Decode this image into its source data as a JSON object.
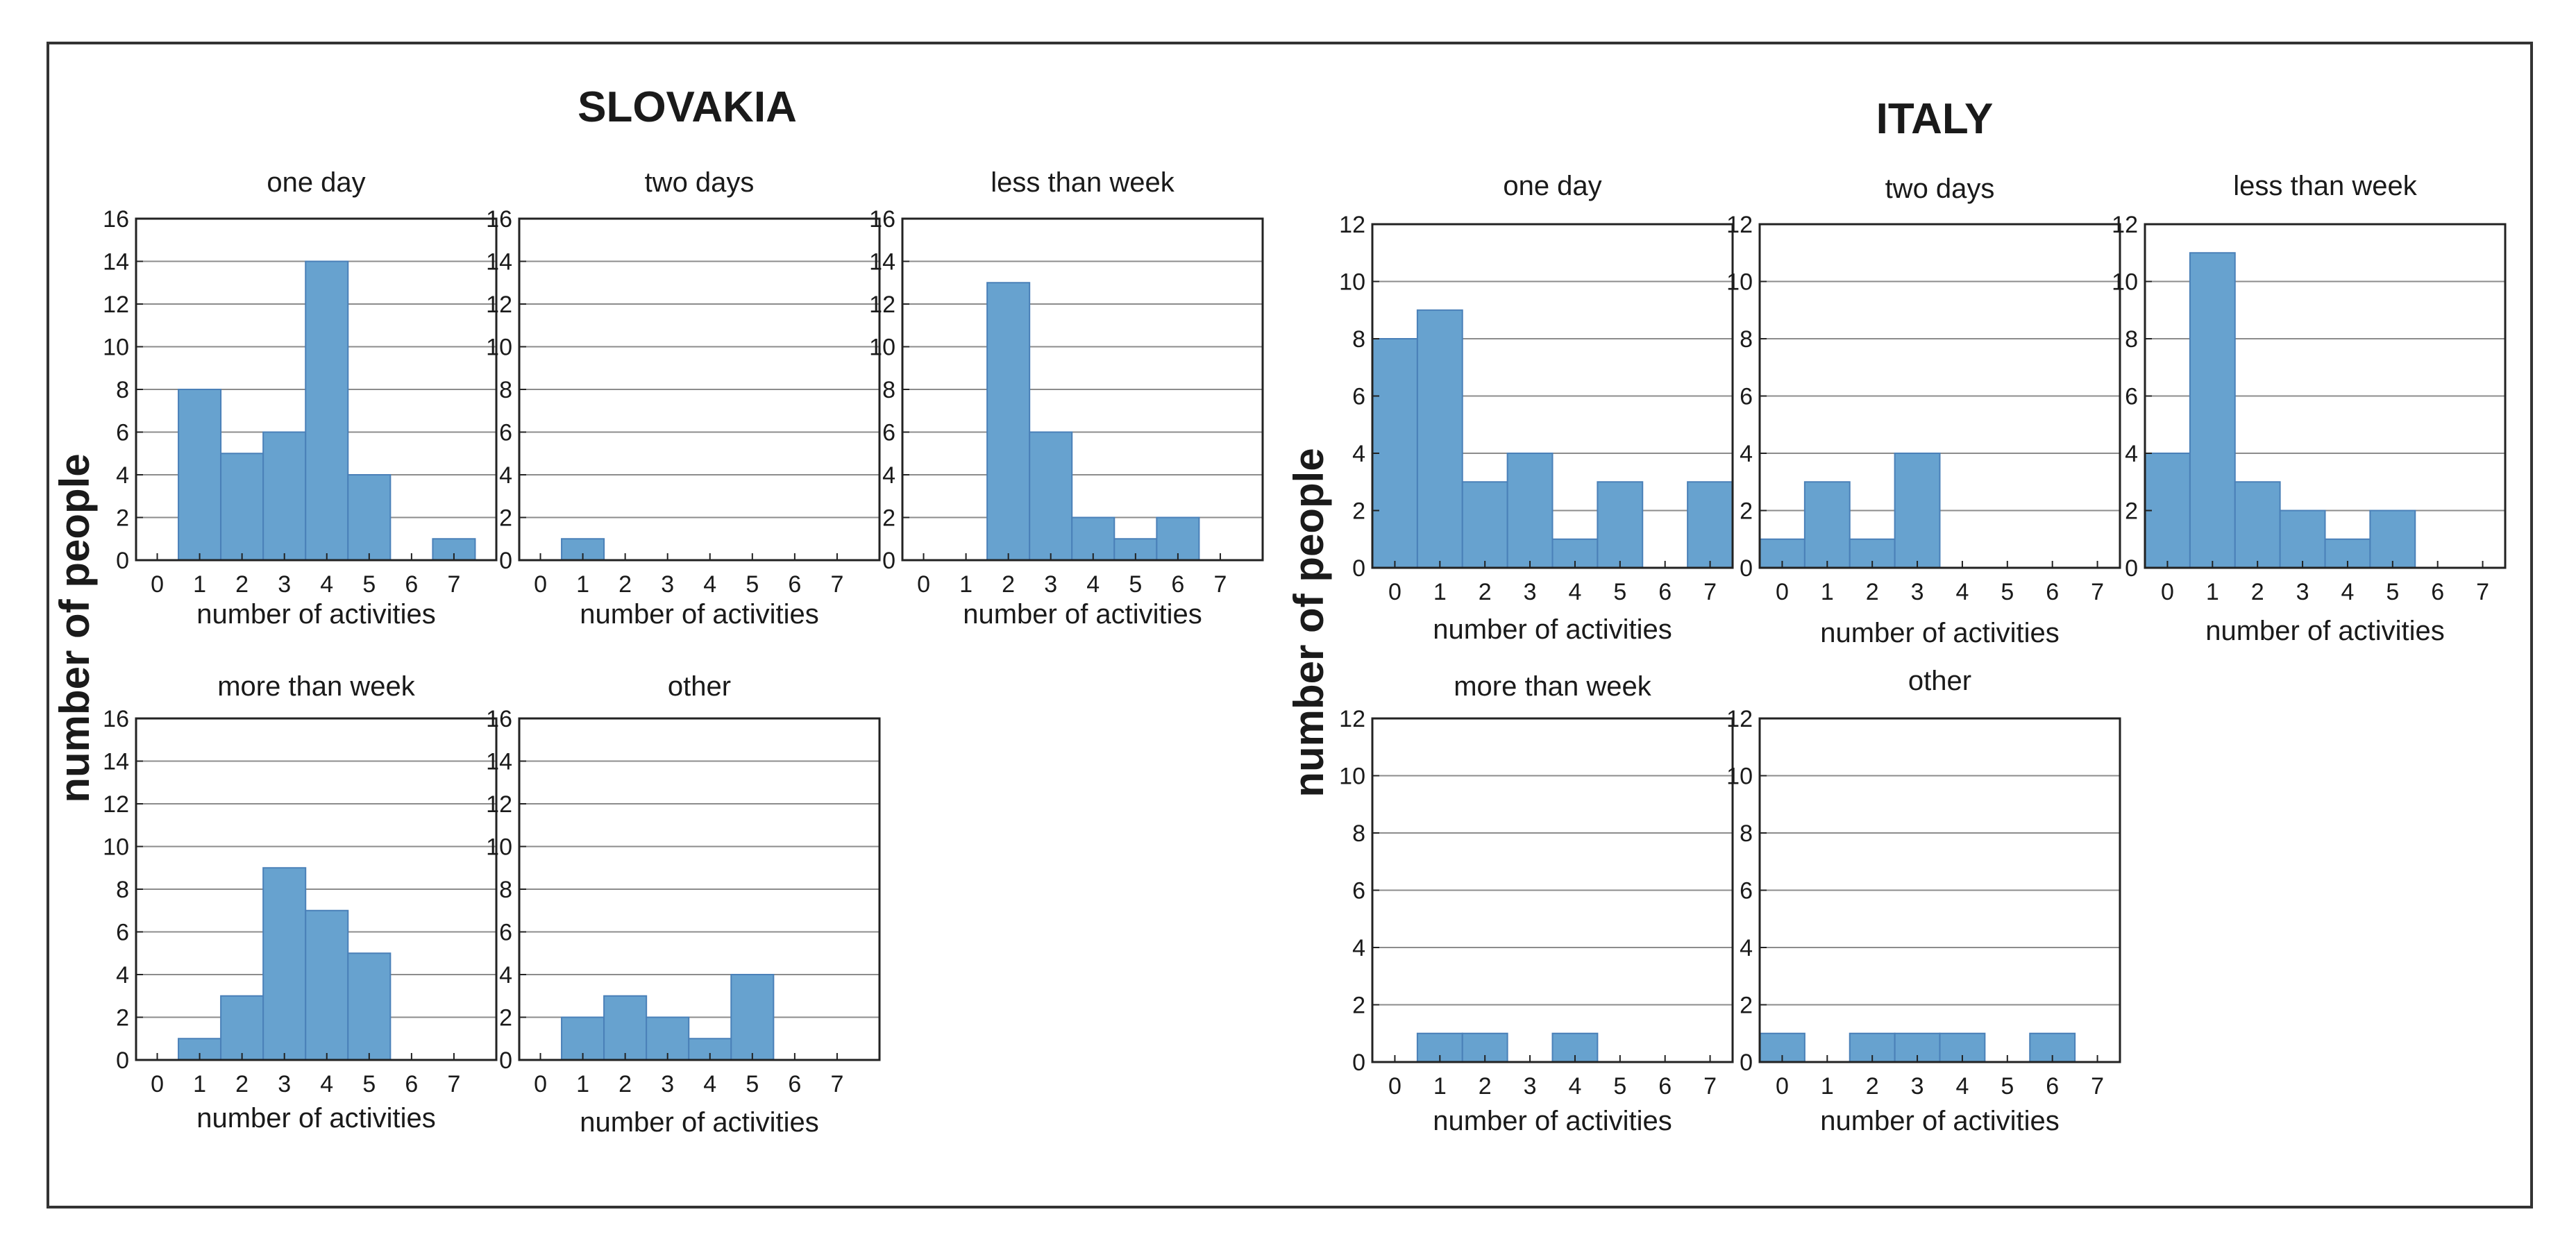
{
  "bar_color": "#67a2cf",
  "chart_data": [
    {
      "type": "bar",
      "group": "SLOVAKIA",
      "title": "one day",
      "xlabel": "number of activities",
      "ylabel": "number of people",
      "categories": [
        "0",
        "1",
        "2",
        "3",
        "4",
        "5",
        "6",
        "7"
      ],
      "values": [
        0,
        8,
        5,
        6,
        14,
        4,
        0,
        1
      ],
      "ylim": [
        0,
        16
      ],
      "yticks": [
        0,
        2,
        4,
        6,
        8,
        10,
        12,
        14,
        16
      ],
      "xlim": [
        -0.5,
        8
      ],
      "grid": true
    },
    {
      "type": "bar",
      "group": "SLOVAKIA",
      "title": "two days",
      "xlabel": "number of activities",
      "ylabel": "number of people",
      "categories": [
        "0",
        "1",
        "2",
        "3",
        "4",
        "5",
        "6",
        "7"
      ],
      "values": [
        0,
        1,
        0,
        0,
        0,
        0,
        0,
        0
      ],
      "ylim": [
        0,
        16
      ],
      "yticks": [
        0,
        2,
        4,
        6,
        8,
        10,
        12,
        14,
        16
      ],
      "xlim": [
        -0.5,
        8
      ],
      "grid": true
    },
    {
      "type": "bar",
      "group": "SLOVAKIA",
      "title": "less than week",
      "xlabel": "number of activities",
      "ylabel": "number of people",
      "categories": [
        "0",
        "1",
        "2",
        "3",
        "4",
        "5",
        "6",
        "7"
      ],
      "values": [
        0,
        0,
        13,
        6,
        2,
        1,
        2,
        0
      ],
      "ylim": [
        0,
        16
      ],
      "yticks": [
        0,
        2,
        4,
        6,
        8,
        10,
        12,
        14,
        16
      ],
      "xlim": [
        -0.5,
        8
      ],
      "grid": true
    },
    {
      "type": "bar",
      "group": "SLOVAKIA",
      "title": "more than week",
      "xlabel": "number of activities",
      "ylabel": "number of people",
      "categories": [
        "0",
        "1",
        "2",
        "3",
        "4",
        "5",
        "6",
        "7"
      ],
      "values": [
        0,
        1,
        3,
        9,
        7,
        5,
        0,
        0
      ],
      "ylim": [
        0,
        16
      ],
      "yticks": [
        0,
        2,
        4,
        6,
        8,
        10,
        12,
        14,
        16
      ],
      "xlim": [
        -0.5,
        8
      ],
      "grid": true
    },
    {
      "type": "bar",
      "group": "SLOVAKIA",
      "title": "other",
      "xlabel": "number of activities",
      "ylabel": "number of people",
      "categories": [
        "0",
        "1",
        "2",
        "3",
        "4",
        "5",
        "6",
        "7"
      ],
      "values": [
        0,
        2,
        3,
        2,
        1,
        4,
        0,
        0
      ],
      "ylim": [
        0,
        16
      ],
      "yticks": [
        0,
        2,
        4,
        6,
        8,
        10,
        12,
        14,
        16
      ],
      "xlim": [
        -0.5,
        8
      ],
      "grid": true
    },
    {
      "type": "bar",
      "group": "ITALY",
      "title": "one day",
      "xlabel": "number of activities",
      "ylabel": "number of people",
      "categories": [
        "0",
        "1",
        "2",
        "3",
        "4",
        "5",
        "6",
        "7"
      ],
      "values": [
        8,
        9,
        3,
        4,
        1,
        3,
        0,
        3
      ],
      "ylim": [
        0,
        12
      ],
      "yticks": [
        0,
        2,
        4,
        6,
        8,
        10,
        12
      ],
      "xlim": [
        -0.5,
        7.5
      ],
      "grid": true
    },
    {
      "type": "bar",
      "group": "ITALY",
      "title": "two days",
      "xlabel": "number of activities",
      "ylabel": "number of people",
      "categories": [
        "0",
        "1",
        "2",
        "3",
        "4",
        "5",
        "6",
        "7"
      ],
      "values": [
        1,
        3,
        1,
        4,
        0,
        0,
        0,
        0
      ],
      "ylim": [
        0,
        12
      ],
      "yticks": [
        0,
        2,
        4,
        6,
        8,
        10,
        12
      ],
      "xlim": [
        -0.5,
        7.5
      ],
      "grid": true
    },
    {
      "type": "bar",
      "group": "ITALY",
      "title": "less than week",
      "xlabel": "number of activities",
      "ylabel": "number of people",
      "categories": [
        "0",
        "1",
        "2",
        "3",
        "4",
        "5",
        "6",
        "7"
      ],
      "values": [
        4,
        11,
        3,
        2,
        1,
        2,
        0,
        0
      ],
      "ylim": [
        0,
        12
      ],
      "yticks": [
        0,
        2,
        4,
        6,
        8,
        10,
        12
      ],
      "xlim": [
        -0.5,
        7.5
      ],
      "grid": true
    },
    {
      "type": "bar",
      "group": "ITALY",
      "title": "more than week",
      "xlabel": "number of activities",
      "ylabel": "number of people",
      "categories": [
        "0",
        "1",
        "2",
        "3",
        "4",
        "5",
        "6",
        "7"
      ],
      "values": [
        0,
        1,
        1,
        0,
        1,
        0,
        0,
        0
      ],
      "ylim": [
        0,
        12
      ],
      "yticks": [
        0,
        2,
        4,
        6,
        8,
        10,
        12
      ],
      "xlim": [
        -0.5,
        7.5
      ],
      "grid": true
    },
    {
      "type": "bar",
      "group": "ITALY",
      "title": "other",
      "xlabel": "number of activities",
      "ylabel": "number of people",
      "categories": [
        "0",
        "1",
        "2",
        "3",
        "4",
        "5",
        "6",
        "7"
      ],
      "values": [
        1,
        0,
        1,
        1,
        1,
        0,
        1,
        0
      ],
      "ylim": [
        0,
        12
      ],
      "yticks": [
        0,
        2,
        4,
        6,
        8,
        10,
        12
      ],
      "xlim": [
        -0.5,
        7.5
      ],
      "grid": true
    }
  ],
  "countries": {
    "slovakia": {
      "title": "SLOVAKIA",
      "ylabel": "number of people"
    },
    "italy": {
      "title": "ITALY",
      "ylabel": "number of people"
    }
  }
}
